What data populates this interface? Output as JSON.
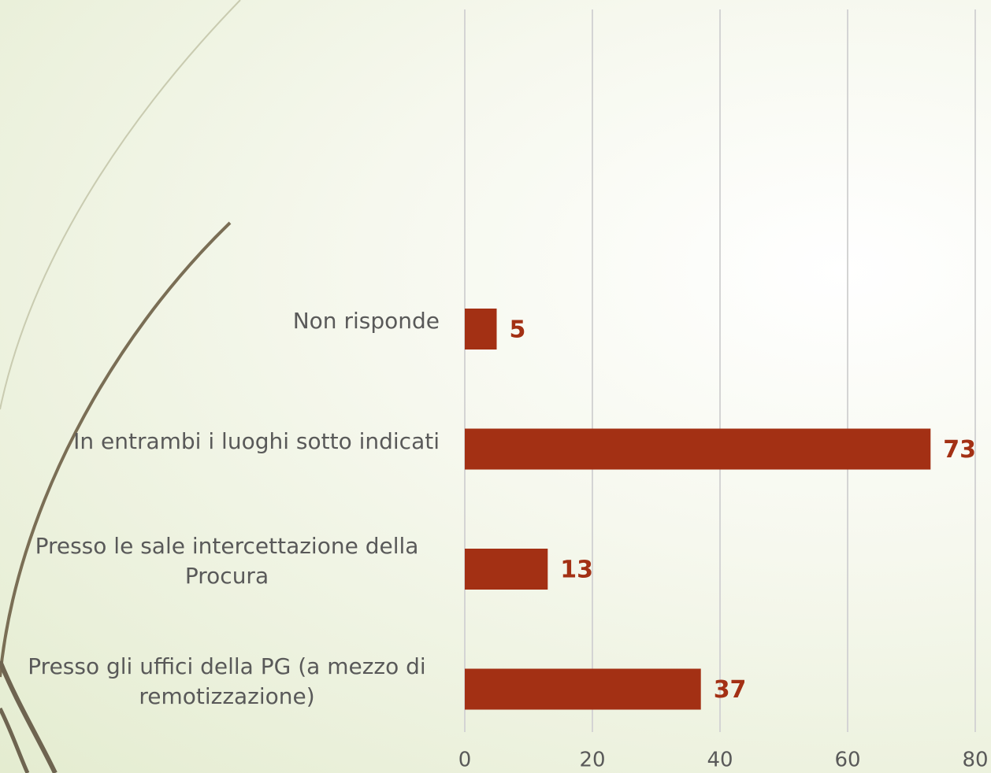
{
  "chart_data": {
    "type": "bar",
    "orientation": "horizontal",
    "categories": [
      "Non risponde",
      "In entrambi i luoghi sotto indicati",
      "Presso le sale intercettazione della Procura",
      "Presso gli uffici della PG (a mezzo di remotizzazione)"
    ],
    "values": [
      5,
      73,
      13,
      37
    ],
    "color": "#a33014",
    "xlim": [
      0,
      80
    ],
    "xticks": [
      0,
      20,
      40,
      60,
      80
    ],
    "grid": true
  }
}
